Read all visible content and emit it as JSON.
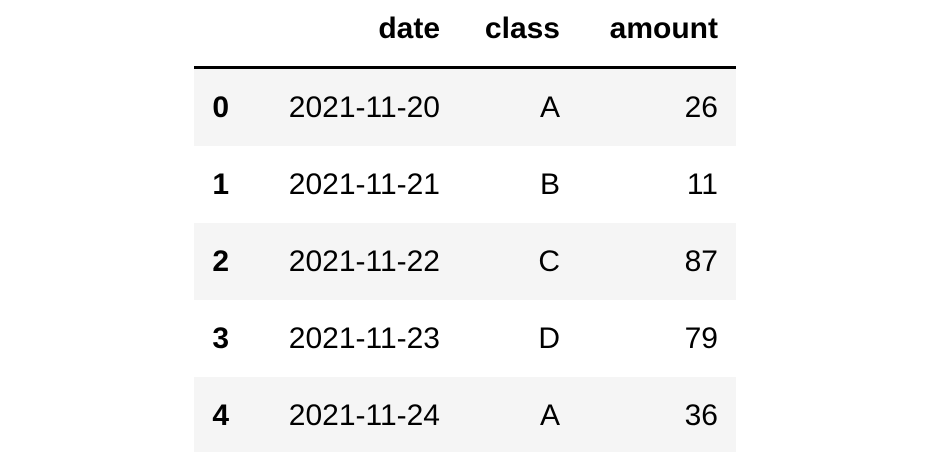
{
  "table": {
    "columns": [
      "date",
      "class",
      "amount"
    ],
    "index": [
      0,
      1,
      2,
      3,
      4
    ],
    "rows": [
      [
        "2021-11-20",
        "A",
        26
      ],
      [
        "2021-11-21",
        "B",
        11
      ],
      [
        "2021-11-22",
        "C",
        87
      ],
      [
        "2021-11-23",
        "D",
        79
      ],
      [
        "2021-11-24",
        "A",
        36
      ]
    ]
  }
}
